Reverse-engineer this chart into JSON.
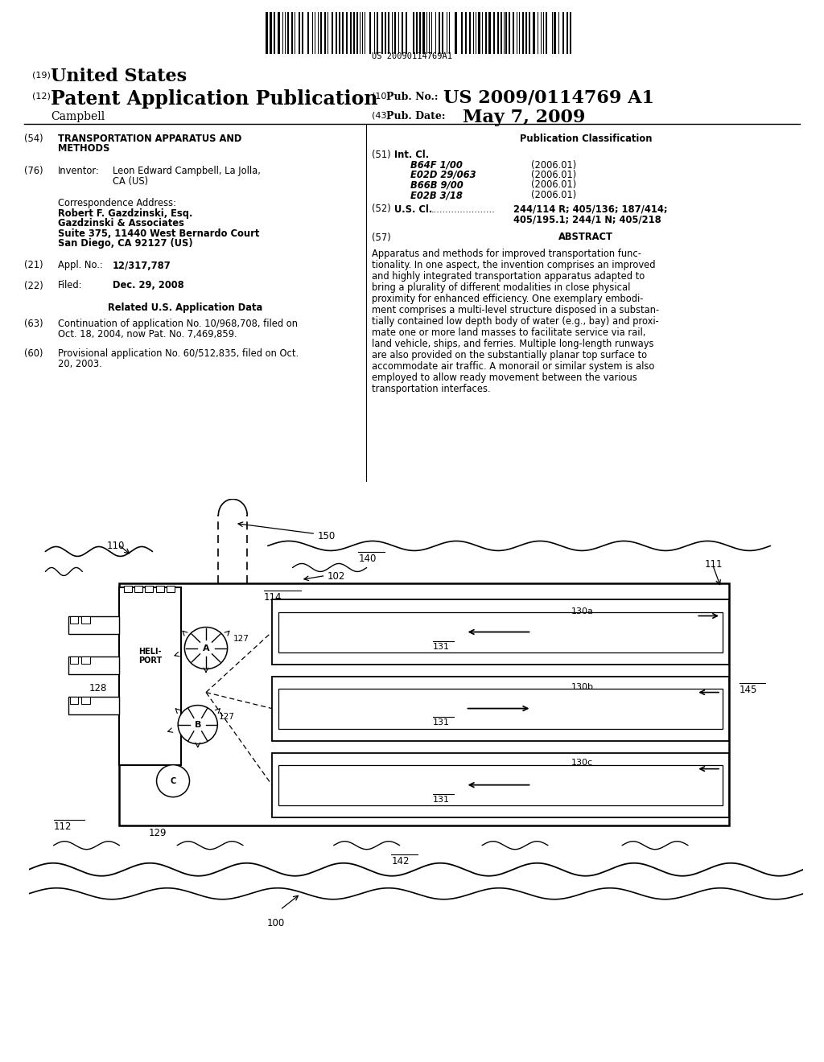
{
  "bg_color": "#ffffff",
  "barcode_text": "US 20090114769A1",
  "header_19": "(19)",
  "header_us": "United States",
  "header_12": "(12)",
  "header_pap": "Patent Application Publication",
  "header_campbell": "Campbell",
  "header_10": "(10)",
  "header_pub_no_label": "Pub. No.:",
  "header_pub_no_val": "US 2009/0114769 A1",
  "header_43": "(43)",
  "header_pub_date_label": "Pub. Date:",
  "header_pub_date_val": "May 7, 2009",
  "item54_num": "(54)",
  "item54_title_line1": "TRANSPORTATION APPARATUS AND",
  "item54_title_line2": "METHODS",
  "item76_num": "(76)",
  "item76_label": "Inventor:",
  "item76_val_line1": "Leon Edward Campbell, La Jolla,",
  "item76_val_line2": "CA (US)",
  "corr_label": "Correspondence Address:",
  "corr_name": "Robert F. Gazdzinski, Esq.",
  "corr_firm": "Gazdzinski & Associates",
  "corr_addr": "Suite 375, 11440 West Bernardo Court",
  "corr_city": "San Diego, CA 92127 (US)",
  "item21_num": "(21)",
  "item21_label": "Appl. No.:",
  "item21_val": "12/317,787",
  "item22_num": "(22)",
  "item22_label": "Filed:",
  "item22_val": "Dec. 29, 2008",
  "related_title": "Related U.S. Application Data",
  "item63_num": "(63)",
  "item63_line1": "Continuation of application No. 10/968,708, filed on",
  "item63_line2": "Oct. 18, 2004, now Pat. No. 7,469,859.",
  "item60_num": "(60)",
  "item60_line1": "Provisional application No. 60/512,835, filed on Oct.",
  "item60_line2": "20, 2003.",
  "pub_class_title": "Publication Classification",
  "item51_num": "(51)",
  "item51_label": "Int. Cl.",
  "int_cl": [
    [
      "B64F 1/00",
      "(2006.01)"
    ],
    [
      "E02D 29/063",
      "(2006.01)"
    ],
    [
      "B66B 9/00",
      "(2006.01)"
    ],
    [
      "E02B 3/18",
      "(2006.01)"
    ]
  ],
  "item52_num": "(52)",
  "item52_label": "U.S. Cl.",
  "item52_dots": "......................",
  "item52_val1": "244/114 R; 405/136; 187/414;",
  "item52_val2": "405/195.1; 244/1 N; 405/218",
  "item57_num": "(57)",
  "abstract_title": "ABSTRACT",
  "abstract_lines": [
    "Apparatus and methods for improved transportation func-",
    "tionality. In one aspect, the invention comprises an improved",
    "and highly integrated transportation apparatus adapted to",
    "bring a plurality of different modalities in close physical",
    "proximity for enhanced efficiency. One exemplary embodi-",
    "ment comprises a multi-level structure disposed in a substan-",
    "tially contained low depth body of water (e.g., bay) and proxi-",
    "mate one or more land masses to facilitate service via rail,",
    "land vehicle, ships, and ferries. Multiple long-length runways",
    "are also provided on the substantially planar top surface to",
    "accommodate air traffic. A monorail or similar system is also",
    "employed to allow ready movement between the various",
    "transportation interfaces."
  ]
}
